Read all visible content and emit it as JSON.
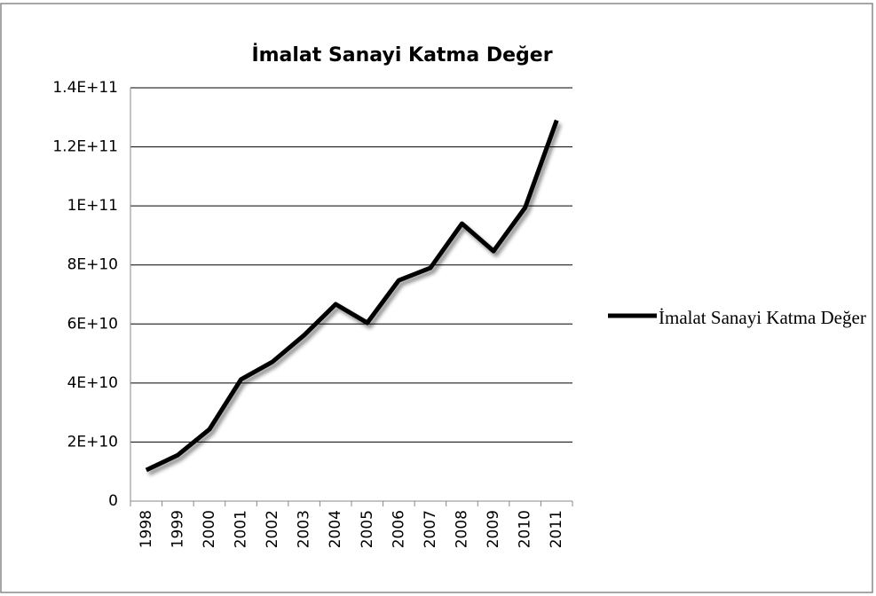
{
  "chart_data": {
    "type": "line",
    "title": "İmalat Sanayi Katma Değer",
    "categories": [
      "1998",
      "1999",
      "2000",
      "2001",
      "2002",
      "2003",
      "2004",
      "2005",
      "2006",
      "2007",
      "2008",
      "2009",
      "2010",
      "2011"
    ],
    "series": [
      {
        "name": "İmalat Sanayi Katma Değer",
        "color": "#000000",
        "values": [
          10500000000,
          15600000000,
          24300000000,
          41200000000,
          47200000000,
          56200000000,
          66700000000,
          60400000000,
          74800000000,
          79000000000,
          94000000000,
          84700000000,
          99400000000,
          129000000000
        ]
      }
    ],
    "ylim": [
      0,
      140000000000
    ],
    "yticks": [
      0,
      {
        "value": 20000000000,
        "label": "2E+10"
      },
      {
        "value": 40000000000,
        "label": "4E+10"
      },
      {
        "value": 60000000000,
        "label": "6E+10"
      },
      {
        "value": 80000000000,
        "label": "8E+10"
      },
      {
        "value": 100000000000,
        "label": "1E+11"
      },
      {
        "value": 120000000000,
        "label": "1.2E+11"
      },
      {
        "value": 140000000000,
        "label": "1.4E+11"
      }
    ],
    "grid": true,
    "legend": "right"
  }
}
